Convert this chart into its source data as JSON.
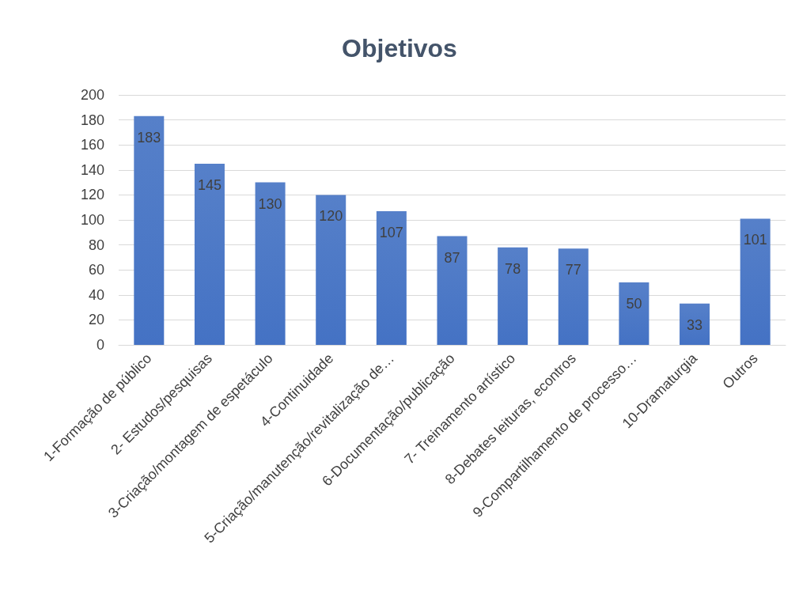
{
  "chart_data": {
    "type": "bar",
    "title": "Objetivos",
    "categories": [
      "1-Formação de público",
      "2- Estudos/pesquisas",
      "3-Criação/montagem de espetáculo",
      "4-Continuidade",
      "5-Criação/manutenção/revitalização de…",
      "6-Documentação/publicação",
      "7- Treinamento artístico",
      "8-Debates leituras, econtros",
      "9-Compartilhamento de processo…",
      "10-Dramaturgia",
      "Outros"
    ],
    "values": [
      183,
      145,
      130,
      120,
      107,
      87,
      78,
      77,
      50,
      33,
      101
    ],
    "color": "#4472c4",
    "ylim": [
      0,
      200
    ],
    "yticks": [
      0,
      20,
      40,
      60,
      80,
      100,
      120,
      140,
      160,
      180,
      200
    ],
    "grid": "y",
    "data_labels": true
  }
}
